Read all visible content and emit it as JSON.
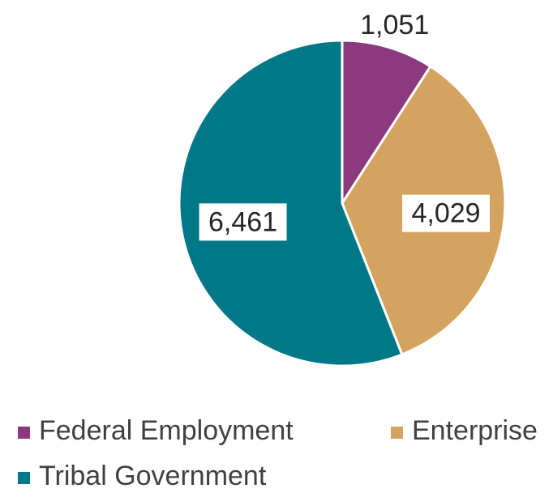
{
  "chart_data": {
    "type": "pie",
    "categories": [
      "Federal Employment",
      "Enterprise",
      "Tribal Government"
    ],
    "values": [
      1051,
      4029,
      6461
    ],
    "value_labels": [
      "1,051",
      "4,029",
      "6,461"
    ],
    "colors": [
      "#8B3A7E",
      "#D4A35F",
      "#007887"
    ],
    "start_angle": "12 o'clock",
    "direction": "clockwise",
    "legend_position": "bottom"
  }
}
